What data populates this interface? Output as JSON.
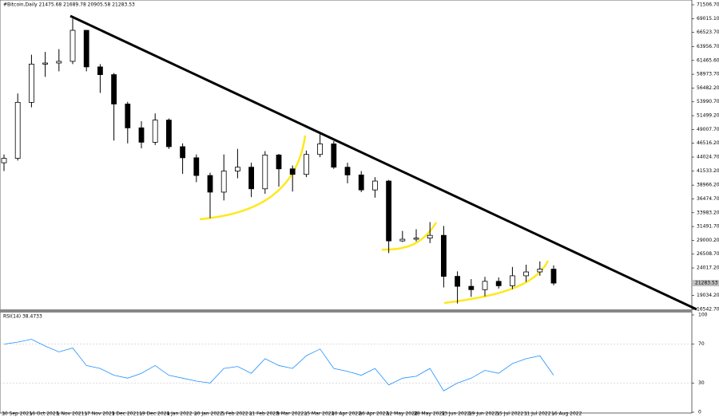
{
  "chart_data": {
    "type": "candlestick",
    "title": "#Bitcoin,Daily  21475.68 21689.78 20905.58 21283.53",
    "categories": [
      "30 Sep 2021",
      null,
      "16 Oct 2021",
      null,
      "1 Nov 2021",
      null,
      "17 Nov 2021",
      null,
      "3 Dec 2021",
      null,
      "19 Dec 2021",
      null,
      "4 Jan 2022",
      null,
      "20 Jan 2022",
      null,
      "5 Feb 2022",
      null,
      "21 Feb 2022",
      null,
      "9 Mar 2022",
      null,
      "25 Mar 2022",
      null,
      "10 Apr 2022",
      null,
      "26 Apr 2022",
      null,
      "12 May 2022",
      null,
      "28 May 2022",
      null,
      "13 Jun 2022",
      null,
      "29 Jun 2022",
      null,
      "15 Jul 2022",
      null,
      "31 Jul 2022",
      null,
      "16 Aug 2022"
    ],
    "open": [
      43000,
      43800,
      53900,
      60800,
      61000,
      61300,
      66900,
      60300,
      58900,
      53600,
      49300,
      46700,
      50700,
      45900,
      43900,
      40700,
      37700,
      41500,
      42200,
      38300,
      44400,
      41900,
      40900,
      44500,
      46400,
      42200,
      40800,
      38100,
      39700,
      28900,
      29200,
      29400,
      29900,
      22500,
      20700,
      20100,
      21600,
      20800,
      22600,
      23300,
      23800
    ],
    "high": [
      44500,
      55500,
      62500,
      63000,
      63500,
      69000,
      66500,
      60800,
      59200,
      54000,
      50500,
      51900,
      51000,
      46500,
      44500,
      41200,
      44500,
      45500,
      43000,
      45100,
      44600,
      42500,
      45200,
      48200,
      46900,
      43000,
      41500,
      40400,
      39900,
      30700,
      31000,
      32300,
      31600,
      23400,
      22000,
      22400,
      22300,
      24200,
      24600,
      25200,
      24500
    ],
    "low": [
      41500,
      43400,
      53000,
      58500,
      59500,
      60800,
      59500,
      55600,
      47000,
      46500,
      45600,
      46200,
      45500,
      41000,
      39500,
      33000,
      36200,
      40200,
      36800,
      37400,
      38700,
      37800,
      40400,
      44000,
      41900,
      39300,
      37700,
      36700,
      26700,
      28700,
      28800,
      28500,
      20500,
      17600,
      18800,
      18900,
      20300,
      20200,
      21500,
      22600,
      20900
    ],
    "close": [
      43800,
      53900,
      60800,
      61000,
      61300,
      66900,
      60300,
      58900,
      53600,
      49300,
      46700,
      50700,
      45900,
      43900,
      40700,
      37700,
      41500,
      42200,
      38300,
      44400,
      41900,
      40900,
      44500,
      46400,
      42200,
      40800,
      38100,
      39700,
      28900,
      29200,
      29400,
      29900,
      22500,
      20700,
      20100,
      21600,
      20800,
      22600,
      23300,
      23800,
      21283.53
    ],
    "ylim": [
      16542.7,
      72370
    ],
    "yticks": [
      {
        "value": 71506.7,
        "label": "71506.70"
      },
      {
        "value": 69015.1,
        "label": "69015.10"
      },
      {
        "value": 66523.7,
        "label": "66523.70"
      },
      {
        "value": 63956.7,
        "label": "63956.70"
      },
      {
        "value": 61465.6,
        "label": "61465.60"
      },
      {
        "value": 58973.7,
        "label": "58973.70"
      },
      {
        "value": 56482.2,
        "label": "56482.20"
      },
      {
        "value": 53990.7,
        "label": "53990.70"
      },
      {
        "value": 51499.2,
        "label": "51499.20"
      },
      {
        "value": 49007.7,
        "label": "49007.70"
      },
      {
        "value": 46516.2,
        "label": "46516.20"
      },
      {
        "value": 44024.7,
        "label": "44024.70"
      },
      {
        "value": 41533.2,
        "label": "41533.20"
      },
      {
        "value": 38966.2,
        "label": "38966.20"
      },
      {
        "value": 36474.7,
        "label": "36474.70"
      },
      {
        "value": 33983.2,
        "label": "33983.20"
      },
      {
        "value": 31491.7,
        "label": "31491.70"
      },
      {
        "value": 29000.2,
        "label": "29000.20"
      },
      {
        "value": 26508.7,
        "label": "26508.70"
      },
      {
        "value": 24017.2,
        "label": "24017.20"
      },
      {
        "value": 19034.2,
        "label": "19034.20"
      },
      {
        "value": 16542.7,
        "label": "16542.70"
      }
    ],
    "indicator": {
      "title": "RSI(14) 38.4733",
      "color": "#1e90ff",
      "values": [
        70,
        72,
        75,
        68,
        62,
        66,
        48,
        45,
        38,
        35,
        40,
        48,
        38,
        35,
        32,
        30,
        45,
        47,
        40,
        55,
        48,
        45,
        58,
        65,
        45,
        42,
        38,
        45,
        28,
        35,
        37,
        45,
        22,
        30,
        35,
        43,
        40,
        50,
        55,
        58,
        38
      ],
      "ylim": [
        0,
        100
      ],
      "yticks": [
        100,
        70,
        30,
        0
      ]
    }
  }
}
